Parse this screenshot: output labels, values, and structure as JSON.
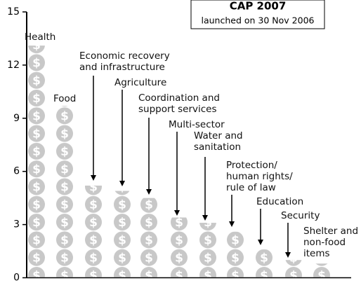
{
  "chart_data": {
    "type": "pictogram",
    "title": "CAP 2007",
    "subtitle": "launched on 30 Nov 2006",
    "categories": [
      "Health",
      "Food",
      "Economic recovery\nand infrastructure",
      "Agriculture",
      "Coordination and\nsupport services",
      "Multi-sector",
      "Water and\nsanitation",
      "Protection/\nhuman rights/\nrule of law",
      "Education",
      "Security",
      "Shelter and\nnon-food\nitems"
    ],
    "values": [
      13.1,
      9.7,
      5.2,
      4.9,
      4.5,
      3.4,
      3.1,
      2.6,
      1.6,
      1.0,
      0.8
    ],
    "color": "#c8c8c8",
    "ylim": [
      0,
      15
    ],
    "yticks": [
      0,
      3,
      6,
      9,
      12,
      15
    ]
  }
}
